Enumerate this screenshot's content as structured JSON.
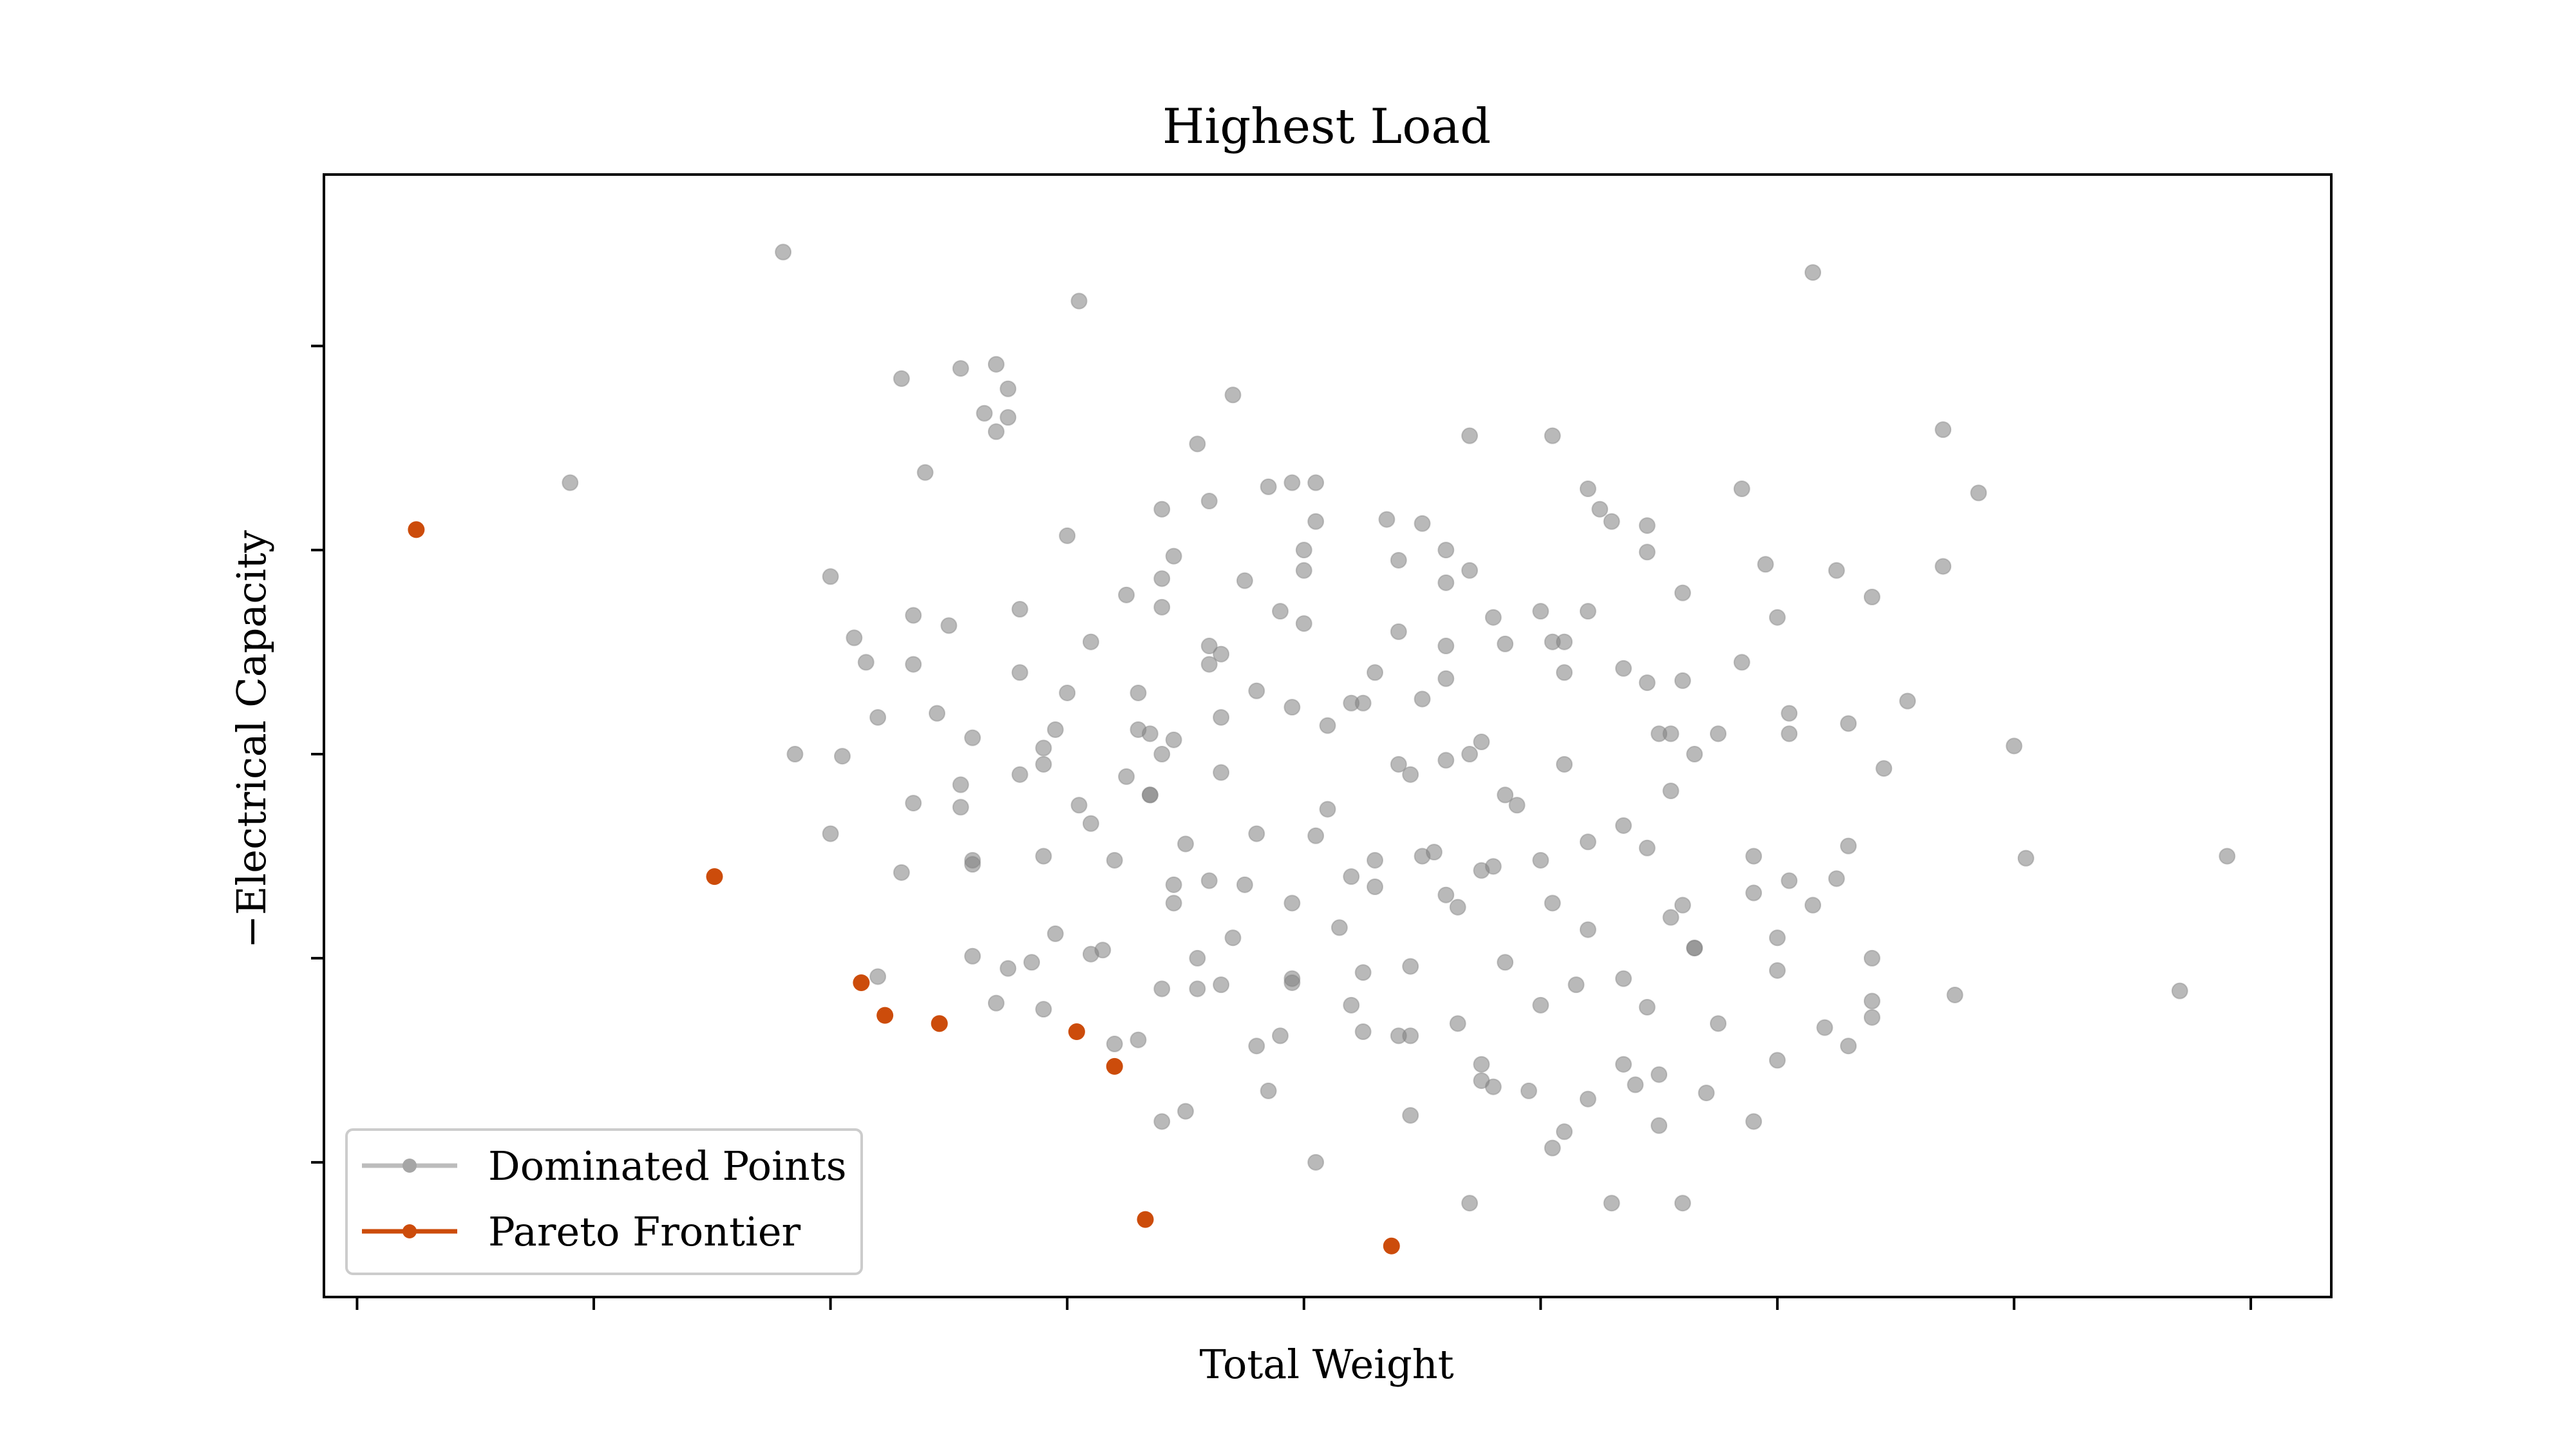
{
  "chart_data": {
    "type": "scatter",
    "title": "Highest Load",
    "xlabel": "Total Weight",
    "ylabel": "−Electrical Capacity",
    "xlim": [
      -0.14,
      8.34
    ],
    "ylim": [
      -0.66,
      4.84
    ],
    "xticks": [
      0,
      1,
      2,
      3,
      4,
      5,
      6,
      7,
      8
    ],
    "yticks": [
      0,
      1,
      2,
      3,
      4
    ],
    "xtick_labels_visible": false,
    "ytick_labels_visible": false,
    "grid": false,
    "legend_position": "lower-left",
    "series": [
      {
        "name": "Dominated Points",
        "color": "#a6a6a6",
        "points": [
          [
            1.8,
            4.46
          ],
          [
            0.9,
            3.33
          ],
          [
            6.15,
            4.36
          ],
          [
            3.05,
            4.22
          ],
          [
            2.55,
            3.89
          ],
          [
            2.7,
            3.91
          ],
          [
            2.75,
            3.79
          ],
          [
            2.65,
            3.67
          ],
          [
            2.75,
            3.65
          ],
          [
            2.3,
            3.84
          ],
          [
            2.4,
            3.38
          ],
          [
            3.0,
            3.07
          ],
          [
            3.45,
            2.97
          ],
          [
            3.4,
            2.72
          ],
          [
            3.4,
            2.86
          ],
          [
            3.75,
            2.85
          ],
          [
            3.85,
            3.31
          ],
          [
            3.95,
            3.33
          ],
          [
            4.05,
            3.14
          ],
          [
            4.05,
            3.33
          ],
          [
            4.5,
            3.13
          ],
          [
            4.6,
            2.84
          ],
          [
            4.7,
            3.56
          ],
          [
            5.25,
            3.2
          ],
          [
            5.3,
            3.14
          ],
          [
            5.45,
            3.12
          ],
          [
            5.45,
            2.99
          ],
          [
            5.85,
            3.3
          ],
          [
            5.95,
            2.93
          ],
          [
            6.25,
            2.9
          ],
          [
            6.4,
            2.77
          ],
          [
            5.05,
            3.56
          ],
          [
            2.0,
            2.87
          ],
          [
            2.1,
            2.57
          ],
          [
            2.35,
            2.68
          ],
          [
            2.05,
            1.99
          ],
          [
            1.85,
            2.0
          ],
          [
            2.2,
            2.18
          ],
          [
            2.35,
            2.44
          ],
          [
            2.5,
            2.63
          ],
          [
            2.8,
            2.4
          ],
          [
            3.1,
            2.55
          ],
          [
            3.3,
            2.3
          ],
          [
            3.65,
            2.49
          ],
          [
            3.8,
            2.31
          ],
          [
            4.1,
            2.14
          ],
          [
            4.3,
            2.4
          ],
          [
            4.5,
            2.27
          ],
          [
            4.75,
            2.06
          ],
          [
            5.05,
            2.55
          ],
          [
            5.35,
            2.42
          ],
          [
            5.6,
            2.36
          ],
          [
            5.55,
            1.82
          ],
          [
            5.75,
            2.1
          ],
          [
            6.05,
            2.1
          ],
          [
            6.55,
            2.26
          ],
          [
            7.0,
            2.04
          ],
          [
            2.0,
            1.61
          ],
          [
            2.3,
            1.42
          ],
          [
            2.6,
            1.46
          ],
          [
            2.9,
            1.5
          ],
          [
            3.2,
            1.48
          ],
          [
            3.5,
            1.56
          ],
          [
            3.75,
            1.36
          ],
          [
            4.05,
            1.6
          ],
          [
            4.3,
            1.48
          ],
          [
            4.75,
            1.43
          ],
          [
            5.0,
            1.48
          ],
          [
            5.2,
            1.14
          ],
          [
            5.55,
            1.2
          ],
          [
            5.9,
            1.32
          ],
          [
            7.05,
            1.49
          ],
          [
            7.9,
            1.5
          ],
          [
            2.6,
            1.01
          ],
          [
            2.85,
            0.98
          ],
          [
            3.1,
            1.02
          ],
          [
            3.4,
            0.85
          ],
          [
            3.65,
            0.87
          ],
          [
            3.95,
            0.9
          ],
          [
            4.2,
            0.77
          ],
          [
            4.45,
            0.96
          ],
          [
            4.65,
            0.68
          ],
          [
            5.0,
            0.77
          ],
          [
            5.45,
            0.76
          ],
          [
            6.0,
            0.94
          ],
          [
            6.3,
            0.57
          ],
          [
            6.75,
            0.82
          ],
          [
            2.2,
            0.91
          ],
          [
            2.7,
            0.78
          ],
          [
            3.3,
            0.6
          ],
          [
            3.5,
            0.25
          ],
          [
            3.8,
            0.57
          ],
          [
            4.05,
            0.0
          ],
          [
            4.45,
            0.62
          ],
          [
            4.75,
            0.48
          ],
          [
            5.2,
            0.31
          ],
          [
            5.9,
            0.2
          ],
          [
            6.2,
            0.66
          ],
          [
            3.4,
            0.2
          ],
          [
            4.8,
            0.37
          ],
          [
            4.7,
            -0.2
          ],
          [
            5.05,
            0.07
          ],
          [
            5.3,
            -0.2
          ],
          [
            5.65,
            1.05
          ],
          [
            6.4,
            1.0
          ],
          [
            6.4,
            0.79
          ],
          [
            2.7,
            3.58
          ],
          [
            3.6,
            3.24
          ],
          [
            4.4,
            2.6
          ],
          [
            4.9,
            1.75
          ],
          [
            3.25,
            1.89
          ],
          [
            2.8,
            1.9
          ],
          [
            2.45,
            2.2
          ],
          [
            3.9,
            2.7
          ],
          [
            4.6,
            2.37
          ],
          [
            5.1,
            1.95
          ],
          [
            5.4,
            0.38
          ],
          [
            6.0,
            0.5
          ],
          [
            6.4,
            0.71
          ],
          [
            7.7,
            0.84
          ],
          [
            2.6,
            2.08
          ],
          [
            3.0,
            2.3
          ],
          [
            3.05,
            1.75
          ],
          [
            3.35,
            1.8
          ],
          [
            3.6,
            1.38
          ],
          [
            3.95,
            1.27
          ],
          [
            4.15,
            1.15
          ],
          [
            4.45,
            1.9
          ],
          [
            4.5,
            1.5
          ],
          [
            4.65,
            1.25
          ],
          [
            4.85,
            0.98
          ],
          [
            5.05,
            1.27
          ],
          [
            5.35,
            1.65
          ],
          [
            5.6,
            1.26
          ],
          [
            5.65,
            1.05
          ],
          [
            5.9,
            1.5
          ],
          [
            6.3,
            1.55
          ],
          [
            6.45,
            1.93
          ],
          [
            2.8,
            2.71
          ],
          [
            3.7,
            3.76
          ],
          [
            3.55,
            3.52
          ],
          [
            4.0,
            3.0
          ],
          [
            4.35,
            3.15
          ],
          [
            4.6,
            2.53
          ],
          [
            4.85,
            2.54
          ],
          [
            5.2,
            3.3
          ],
          [
            5.6,
            2.79
          ],
          [
            6.0,
            2.67
          ],
          [
            6.7,
            3.59
          ],
          [
            6.85,
            3.28
          ],
          [
            6.7,
            2.92
          ],
          [
            6.05,
            1.38
          ],
          [
            2.55,
            1.85
          ],
          [
            3.45,
            2.07
          ],
          [
            3.95,
            2.23
          ],
          [
            4.4,
            1.95
          ],
          [
            4.8,
            1.45
          ],
          [
            5.15,
            0.87
          ],
          [
            5.5,
            0.18
          ],
          [
            5.75,
            0.68
          ],
          [
            3.2,
            0.58
          ],
          [
            3.55,
            0.85
          ],
          [
            3.9,
            0.62
          ],
          [
            4.25,
            0.64
          ],
          [
            4.45,
            0.23
          ],
          [
            4.75,
            0.4
          ],
          [
            5.35,
            0.48
          ],
          [
            5.6,
            -0.2
          ],
          [
            3.3,
            2.12
          ],
          [
            3.65,
            2.18
          ],
          [
            4.1,
            1.73
          ],
          [
            4.3,
            1.35
          ],
          [
            4.55,
            1.52
          ],
          [
            4.85,
            1.8
          ],
          [
            5.2,
            1.57
          ],
          [
            5.45,
            1.54
          ],
          [
            6.15,
            1.26
          ],
          [
            6.25,
            1.39
          ],
          [
            3.45,
            1.27
          ],
          [
            3.7,
            1.1
          ],
          [
            3.95,
            0.88
          ],
          [
            4.25,
            0.93
          ],
          [
            3.15,
            1.04
          ],
          [
            2.95,
            1.12
          ],
          [
            2.75,
            0.95
          ],
          [
            2.9,
            0.75
          ],
          [
            5.7,
            0.34
          ],
          [
            5.1,
            0.15
          ],
          [
            4.95,
            0.35
          ],
          [
            3.4,
            2.0
          ],
          [
            2.15,
            2.45
          ],
          [
            2.95,
            2.12
          ],
          [
            3.65,
            1.91
          ],
          [
            4.2,
            2.25
          ],
          [
            5.55,
            2.1
          ],
          [
            6.3,
            2.15
          ],
          [
            2.35,
            1.76
          ],
          [
            3.1,
            1.66
          ],
          [
            3.8,
            1.61
          ],
          [
            4.7,
            2.0
          ],
          [
            5.1,
            2.4
          ],
          [
            5.5,
            2.1
          ],
          [
            5.65,
            2.0
          ],
          [
            6.05,
            2.2
          ],
          [
            4.4,
            2.95
          ],
          [
            4.7,
            2.9
          ],
          [
            3.35,
            2.1
          ],
          [
            2.9,
            1.95
          ],
          [
            2.55,
            1.74
          ],
          [
            3.6,
            2.53
          ],
          [
            4.0,
            2.9
          ],
          [
            4.6,
            3.0
          ],
          [
            5.0,
            2.7
          ],
          [
            5.1,
            2.55
          ],
          [
            5.2,
            2.7
          ],
          [
            5.45,
            2.35
          ],
          [
            3.6,
            2.44
          ],
          [
            4.0,
            2.64
          ],
          [
            4.25,
            2.25
          ],
          [
            3.25,
            2.78
          ],
          [
            4.8,
            2.67
          ],
          [
            3.4,
            3.2
          ],
          [
            3.35,
            1.8
          ],
          [
            2.6,
            1.48
          ],
          [
            2.9,
            2.03
          ],
          [
            3.45,
            1.36
          ],
          [
            4.4,
            0.62
          ],
          [
            5.35,
            0.9
          ],
          [
            5.5,
            0.43
          ],
          [
            6.0,
            1.1
          ],
          [
            4.6,
            1.97
          ],
          [
            5.85,
            2.45
          ],
          [
            4.2,
            1.4
          ],
          [
            4.6,
            1.31
          ],
          [
            3.55,
            1.0
          ],
          [
            3.85,
            0.35
          ]
        ]
      },
      {
        "name": "Pareto Frontier",
        "color": "#cc4c0b",
        "points": [
          [
            0.25,
            3.1
          ],
          [
            1.51,
            1.4
          ],
          [
            2.13,
            0.88
          ],
          [
            2.23,
            0.72
          ],
          [
            2.46,
            0.68
          ],
          [
            3.04,
            0.64
          ],
          [
            3.2,
            0.47
          ],
          [
            3.33,
            -0.28
          ],
          [
            4.37,
            -0.41
          ]
        ]
      }
    ]
  }
}
